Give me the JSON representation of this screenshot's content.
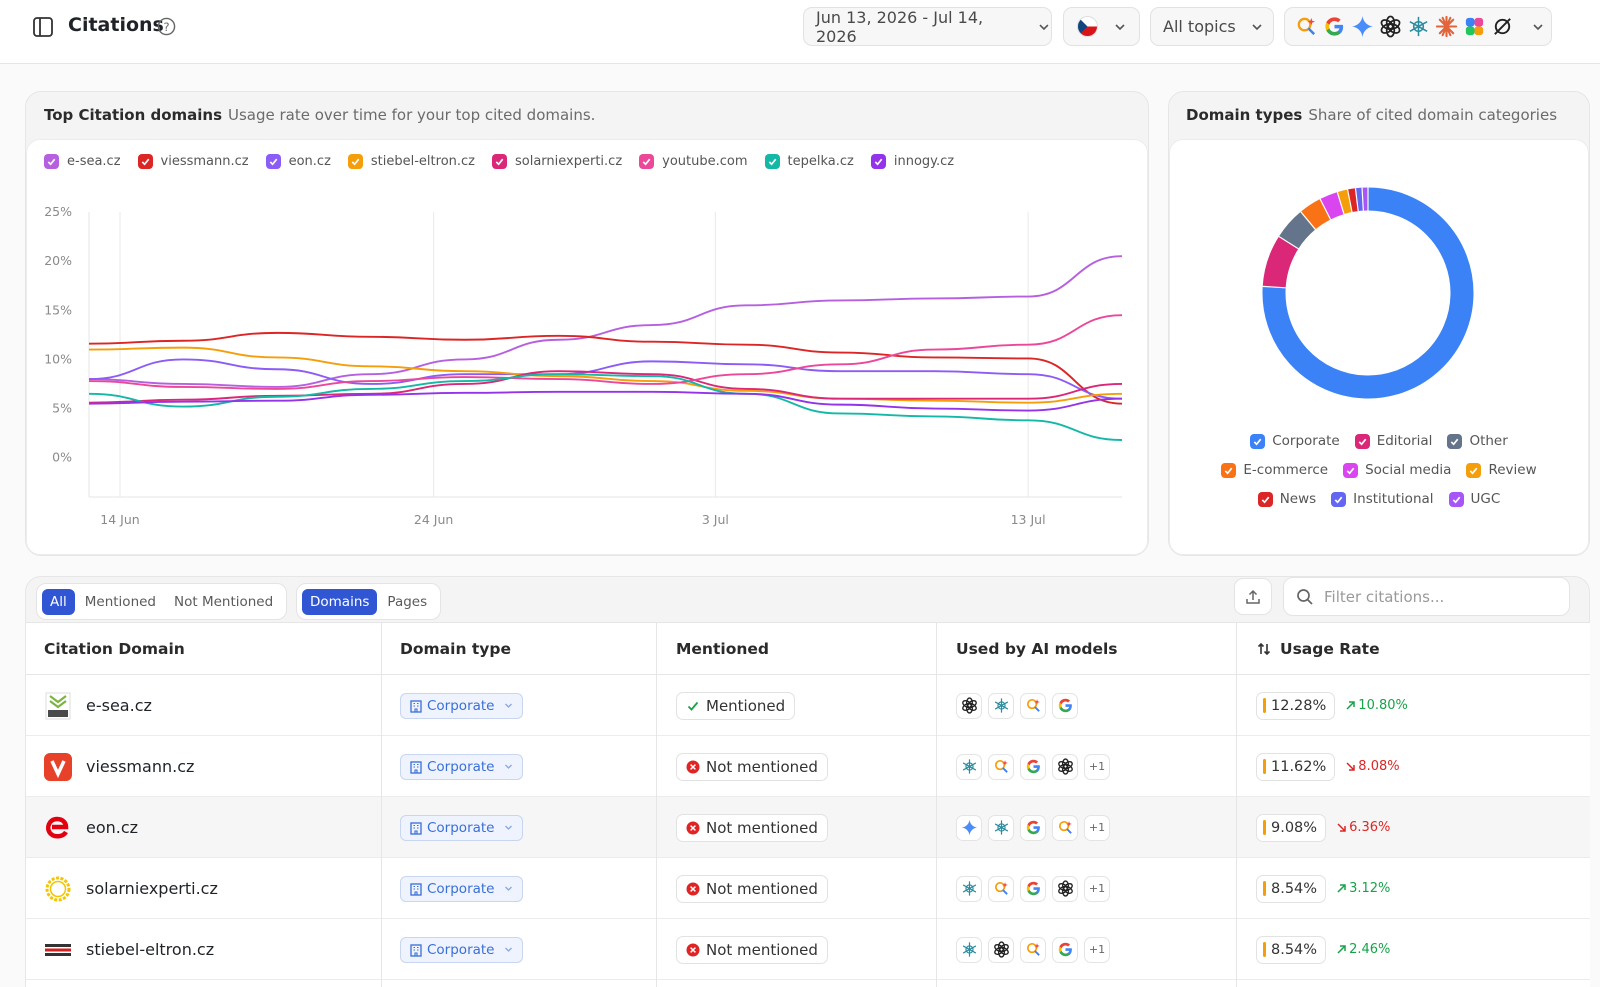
{
  "header": {
    "title": "Citations",
    "date_range": "Jun 13, 2026 - Jul 14, 2026",
    "topics": "All topics"
  },
  "line_chart_card": {
    "title": "Top Citation domains",
    "subtitle": "Usage rate over time for your top cited domains."
  },
  "donut_card": {
    "title": "Domain types",
    "subtitle": "Share of cited domain categories"
  },
  "chart_data": [
    {
      "type": "line",
      "x": [
        "13 Jun",
        "16 Jun",
        "19 Jun",
        "22 Jun",
        "25 Jun",
        "28 Jun",
        "1 Jul",
        "4 Jul",
        "7 Jul",
        "10 Jul",
        "13 Jul",
        "14 Jul"
      ],
      "x_ticks": [
        "14 Jun",
        "24 Jun",
        "3 Jul",
        "13 Jul"
      ],
      "y_ticks": [
        "25%",
        "20%",
        "15%",
        "10%",
        "5%",
        "0%"
      ],
      "ylim": [
        -4,
        25
      ],
      "series": [
        {
          "name": "e-sea.cz",
          "color": "#b660e0",
          "values": [
            8.0,
            7.5,
            7.2,
            8.5,
            10.0,
            12.0,
            13.5,
            15.5,
            16.0,
            16.2,
            16.4,
            20.5
          ]
        },
        {
          "name": "viessmann.cz",
          "color": "#dc2626",
          "values": [
            11.6,
            11.9,
            12.7,
            12.3,
            12.0,
            12.4,
            11.8,
            11.5,
            10.7,
            10.2,
            10.1,
            5.5
          ]
        },
        {
          "name": "eon.cz",
          "color": "#8b5cf6",
          "values": [
            8.0,
            10.0,
            9.0,
            7.5,
            8.5,
            8.5,
            9.8,
            9.5,
            8.8,
            8.8,
            8.5,
            6.0
          ]
        },
        {
          "name": "stiebel-eltron.cz",
          "color": "#f59e0b",
          "values": [
            11.0,
            11.2,
            10.2,
            9.3,
            8.8,
            8.3,
            7.8,
            6.8,
            6.0,
            5.8,
            5.6,
            6.5
          ]
        },
        {
          "name": "solarniexperti.cz",
          "color": "#db2777",
          "values": [
            5.6,
            5.9,
            6.3,
            6.5,
            7.5,
            8.8,
            8.5,
            7.0,
            6.0,
            6.0,
            6.0,
            7.5
          ]
        },
        {
          "name": "youtube.com",
          "color": "#ec4899",
          "values": [
            7.8,
            7.2,
            7.0,
            7.8,
            8.2,
            8.0,
            7.5,
            8.5,
            9.5,
            11.0,
            11.5,
            14.5
          ]
        },
        {
          "name": "tepelka.cz",
          "color": "#14b8a6",
          "values": [
            6.5,
            5.2,
            6.2,
            7.0,
            7.8,
            8.5,
            8.3,
            6.5,
            4.5,
            4.2,
            3.8,
            1.8
          ]
        },
        {
          "name": "innogy.cz",
          "color": "#9333ea",
          "values": [
            5.5,
            5.7,
            5.8,
            6.4,
            6.6,
            6.7,
            6.7,
            6.5,
            5.4,
            5.0,
            4.8,
            6.0
          ]
        }
      ]
    },
    {
      "type": "pie",
      "donut": true,
      "legend_position": "bottom",
      "labels": [
        "Corporate",
        "Editorial",
        "Other",
        "E-commerce",
        "Social media",
        "Review",
        "News",
        "Institutional",
        "UGC"
      ],
      "colors": [
        "#3b82f6",
        "#db2777",
        "#64748b",
        "#f97316",
        "#d946ef",
        "#f59e0b",
        "#dc2626",
        "#6366f1",
        "#a855f7"
      ],
      "values": [
        76.0,
        8.0,
        5.0,
        3.5,
        2.8,
        1.6,
        1.2,
        1.0,
        0.9
      ]
    }
  ],
  "filters": {
    "mention_options": [
      "All",
      "Mentioned",
      "Not Mentioned"
    ],
    "view_options": [
      "Domains",
      "Pages"
    ],
    "search_placeholder": "Filter citations..."
  },
  "table": {
    "headers": [
      "Citation Domain",
      "Domain type",
      "Mentioned",
      "Used by AI models",
      "Usage Rate"
    ],
    "rows": [
      {
        "domain": "e-sea.cz",
        "type": "Corporate",
        "mentioned": "Mentioned",
        "models": [
          "openai",
          "grok",
          "copilot",
          "google"
        ],
        "extra": "",
        "rate": "12.28%",
        "delta": "10.80%",
        "trend": "up"
      },
      {
        "domain": "viessmann.cz",
        "type": "Corporate",
        "mentioned": "Not mentioned",
        "models": [
          "grok",
          "copilot",
          "google",
          "openai"
        ],
        "extra": "+1",
        "rate": "11.62%",
        "delta": "8.08%",
        "trend": "down"
      },
      {
        "domain": "eon.cz",
        "type": "Corporate",
        "mentioned": "Not mentioned",
        "models": [
          "gemini",
          "grok",
          "google",
          "copilot"
        ],
        "extra": "+1",
        "rate": "9.08%",
        "delta": "6.36%",
        "trend": "down"
      },
      {
        "domain": "solarniexperti.cz",
        "type": "Corporate",
        "mentioned": "Not mentioned",
        "models": [
          "grok",
          "copilot",
          "google",
          "openai"
        ],
        "extra": "+1",
        "rate": "8.54%",
        "delta": "3.12%",
        "trend": "up"
      },
      {
        "domain": "stiebel-eltron.cz",
        "type": "Corporate",
        "mentioned": "Not mentioned",
        "models": [
          "grok",
          "openai",
          "copilot",
          "google"
        ],
        "extra": "+1",
        "rate": "8.54%",
        "delta": "2.46%",
        "trend": "up"
      }
    ]
  }
}
